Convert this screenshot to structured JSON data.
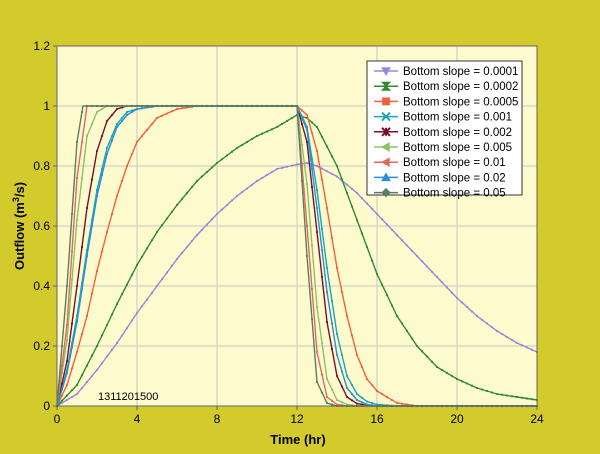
{
  "chart_data": {
    "type": "line",
    "xlabel": "Time (hr)",
    "ylabel_main": "Outflow (m",
    "ylabel_sup": "3",
    "ylabel_tail": "/s)",
    "xlim": [
      0,
      24
    ],
    "ylim": [
      0,
      1.2
    ],
    "xticks": [
      0,
      4,
      8,
      12,
      16,
      20,
      24
    ],
    "yticks": [
      0,
      0.2,
      0.4,
      0.6,
      0.8,
      1,
      1.2
    ],
    "xtick_labels": [
      "0",
      "4",
      "8",
      "12",
      "16",
      "20",
      "24"
    ],
    "ytick_labels": [
      "0",
      "0.2",
      "0.4",
      "0.6",
      "0.8",
      "1",
      "1.2"
    ],
    "grid": "vertical and horizontal",
    "legend_position": "top-right",
    "annotation": "1311201500",
    "colors": {
      "figure_background": "#d3cb2b",
      "plot_background": "#fdfbce",
      "grid": "#c8c8c8"
    },
    "series": [
      {
        "name": "Bottom slope = 0.0001",
        "color": "#9a86d8",
        "marker": "triangle-down",
        "x": [
          0,
          1,
          2,
          3,
          4,
          5,
          6,
          7,
          8,
          9,
          10,
          11,
          12,
          12.5,
          13,
          14,
          15,
          16,
          17,
          18,
          19,
          20,
          21,
          22,
          23,
          24
        ],
        "y": [
          0,
          0.04,
          0.12,
          0.21,
          0.31,
          0.4,
          0.49,
          0.57,
          0.64,
          0.7,
          0.75,
          0.79,
          0.805,
          0.81,
          0.8,
          0.765,
          0.71,
          0.64,
          0.57,
          0.5,
          0.43,
          0.36,
          0.3,
          0.25,
          0.21,
          0.18
        ]
      },
      {
        "name": "Bottom slope = 0.0002",
        "color": "#2f8a32",
        "marker": "hourglass",
        "x": [
          0,
          1,
          2,
          3,
          4,
          5,
          6,
          7,
          8,
          9,
          10,
          11,
          12,
          12.5,
          13,
          14,
          15,
          16,
          17,
          18,
          19,
          20,
          21,
          22,
          23,
          24
        ],
        "y": [
          0,
          0.07,
          0.2,
          0.34,
          0.47,
          0.58,
          0.67,
          0.75,
          0.81,
          0.86,
          0.9,
          0.93,
          0.97,
          0.96,
          0.93,
          0.8,
          0.62,
          0.44,
          0.3,
          0.2,
          0.13,
          0.09,
          0.06,
          0.04,
          0.03,
          0.02
        ]
      },
      {
        "name": "Bottom slope = 0.0005",
        "color": "#f2613a",
        "marker": "square",
        "x": [
          0,
          0.5,
          1,
          1.5,
          2,
          2.5,
          3,
          3.5,
          4,
          5,
          6,
          7,
          8,
          10,
          12,
          12.5,
          13,
          13.5,
          14,
          14.5,
          15,
          15.5,
          16,
          17,
          18,
          24
        ],
        "y": [
          0,
          0.07,
          0.18,
          0.3,
          0.45,
          0.58,
          0.7,
          0.8,
          0.88,
          0.96,
          0.99,
          1,
          1,
          1,
          1,
          0.97,
          0.85,
          0.66,
          0.46,
          0.3,
          0.17,
          0.09,
          0.05,
          0.01,
          0,
          0
        ]
      },
      {
        "name": "Bottom slope = 0.001",
        "color": "#1aa6b8",
        "marker": "cross",
        "x": [
          0,
          0.5,
          1,
          1.5,
          2,
          2.5,
          3,
          3.5,
          4,
          5,
          6,
          8,
          12,
          12.5,
          13,
          13.5,
          14,
          14.5,
          15,
          15.5,
          16,
          17,
          24
        ],
        "y": [
          0,
          0.12,
          0.3,
          0.52,
          0.72,
          0.86,
          0.94,
          0.98,
          0.99,
          1,
          1,
          1,
          1,
          0.93,
          0.72,
          0.46,
          0.24,
          0.1,
          0.04,
          0.015,
          0.005,
          0,
          0
        ]
      },
      {
        "name": "Bottom slope = 0.002",
        "color": "#7a1030",
        "marker": "asterisk",
        "x": [
          0,
          0.5,
          1,
          1.5,
          2,
          2.5,
          3,
          3.5,
          4,
          5,
          8,
          12,
          12.5,
          13,
          13.5,
          14,
          14.5,
          15,
          15.5,
          16,
          24
        ],
        "y": [
          0,
          0.15,
          0.4,
          0.66,
          0.85,
          0.95,
          0.99,
          1,
          1,
          1,
          1,
          1,
          0.88,
          0.58,
          0.28,
          0.1,
          0.03,
          0.008,
          0.002,
          0,
          0
        ]
      },
      {
        "name": "Bottom slope = 0.005",
        "color": "#8ec06a",
        "marker": "triangle-left",
        "x": [
          0,
          0.5,
          1,
          1.5,
          2,
          2.5,
          3,
          4,
          8,
          12,
          12.5,
          13,
          13.5,
          14,
          14.5,
          15,
          24
        ],
        "y": [
          0,
          0.22,
          0.62,
          0.9,
          0.98,
          1,
          1,
          1,
          1,
          1,
          0.74,
          0.33,
          0.09,
          0.02,
          0.005,
          0,
          0
        ]
      },
      {
        "name": "Bottom slope = 0.01",
        "color": "#e06a5c",
        "marker": "triangle-left",
        "x": [
          0,
          0.5,
          1,
          1.5,
          2,
          3,
          4,
          8,
          12,
          12.5,
          13,
          13.5,
          14,
          14.5,
          24
        ],
        "y": [
          0,
          0.27,
          0.76,
          1,
          1,
          1,
          1,
          1,
          1,
          0.6,
          0.18,
          0.03,
          0.005,
          0,
          0
        ]
      },
      {
        "name": "Bottom slope = 0.02",
        "color": "#2a8ed8",
        "marker": "triangle-up",
        "x": [
          0,
          0.5,
          1,
          1.5,
          2,
          2.5,
          3,
          3.5,
          4,
          5,
          8,
          12,
          12.5,
          13,
          13.5,
          14,
          14.5,
          15,
          15.5,
          16,
          24
        ],
        "y": [
          0,
          0.11,
          0.28,
          0.5,
          0.7,
          0.84,
          0.93,
          0.97,
          0.99,
          1,
          1,
          1,
          0.92,
          0.66,
          0.38,
          0.17,
          0.06,
          0.02,
          0.005,
          0,
          0
        ]
      },
      {
        "name": "Bottom slope = 0.05",
        "color": "#5a7e5e",
        "marker": "diamond",
        "x": [
          0,
          0.5,
          1,
          1.3,
          2,
          4,
          8,
          12,
          12.5,
          13,
          13.5,
          14,
          24
        ],
        "y": [
          0,
          0.4,
          0.88,
          1,
          1,
          1,
          1,
          1,
          0.5,
          0.08,
          0.01,
          0,
          0
        ]
      }
    ]
  }
}
